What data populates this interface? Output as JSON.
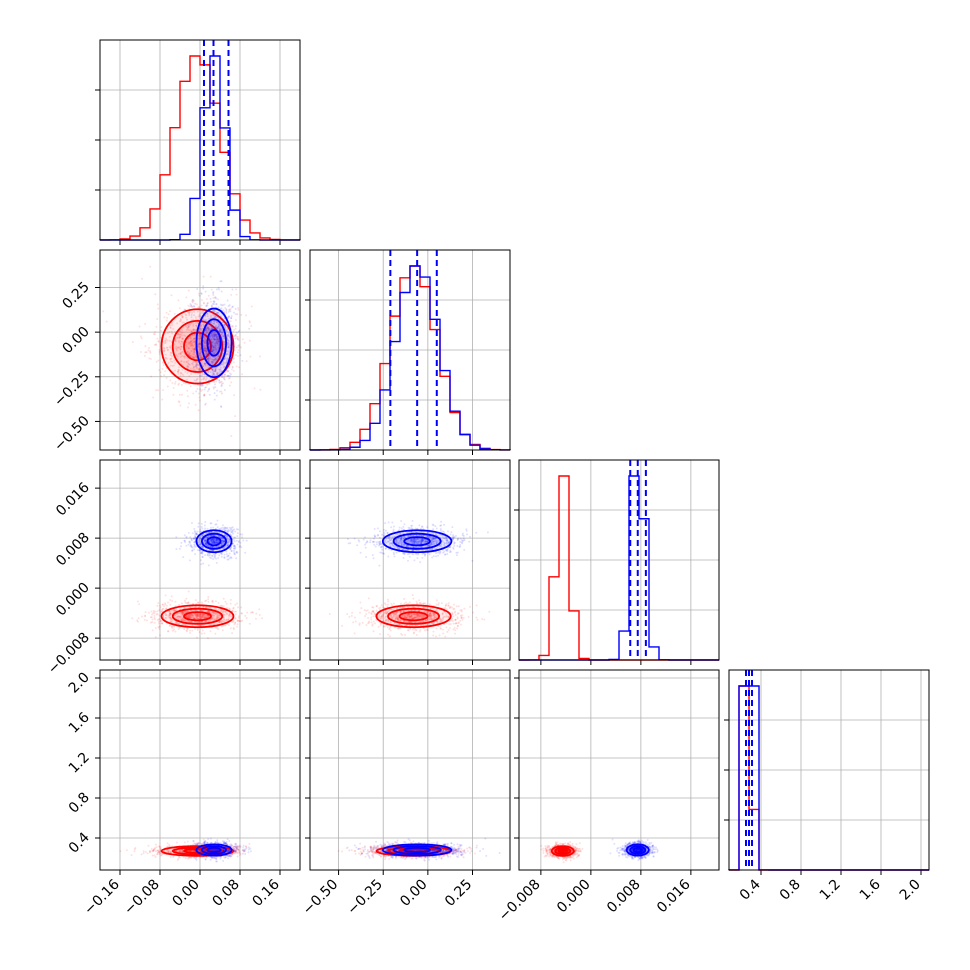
{
  "chart_data": {
    "type": "corner",
    "grid": true,
    "series": [
      {
        "name": "",
        "color": "#ff0000"
      },
      {
        "name": "",
        "color": "#0000ff"
      }
    ],
    "params": [
      {
        "xlim": [
          -0.2,
          0.2
        ],
        "ticks": [
          -0.16,
          -0.08,
          0.0,
          0.08,
          0.16
        ],
        "tick_labels": [
          "−0.16",
          "−0.08",
          "0.00",
          "0.08",
          "0.16"
        ]
      },
      {
        "xlim": [
          -0.66,
          0.46
        ],
        "ticks": [
          -0.5,
          -0.25,
          0.0,
          0.25
        ],
        "tick_labels": [
          "−0.50",
          "−0.25",
          "0.00",
          "0.25"
        ],
        "yticks": [
          -0.5,
          -0.25,
          0.0,
          0.25
        ],
        "ytick_labels": [
          "−0.50",
          "−0.25",
          "0.00",
          "0.25"
        ]
      },
      {
        "xlim": [
          -0.0115,
          0.0205
        ],
        "ticks": [
          -0.008,
          0.0,
          0.008,
          0.016
        ],
        "tick_labels": [
          "−0.008",
          "0.000",
          "0.008",
          "0.016"
        ],
        "yticks": [
          -0.008,
          0.0,
          0.008,
          0.016
        ],
        "ytick_labels": [
          "−0.008",
          "0.000",
          "0.008",
          "0.016"
        ]
      },
      {
        "xlim": [
          0.08,
          2.08
        ],
        "ticks": [
          0.4,
          0.8,
          1.2,
          1.6,
          2.0
        ],
        "tick_labels": [
          "0.4",
          "0.8",
          "1.2",
          "1.6",
          "2.0"
        ],
        "yticks": [
          0.4,
          0.8,
          1.2,
          1.6,
          2.0
        ],
        "ytick_labels": [
          "0.4",
          "0.8",
          "1.2",
          "1.6",
          "2.0"
        ]
      }
    ],
    "distributions": {
      "red": [
        {
          "mean": -0.005,
          "sd": 0.045
        },
        {
          "mean": -0.08,
          "sd": 0.13
        },
        {
          "mean": -0.0045,
          "sd": 0.0011
        },
        {
          "mean": 0.27,
          "sd": 0.03
        }
      ],
      "blue": [
        {
          "mean": 0.028,
          "sd": 0.022
        },
        {
          "mean": -0.06,
          "sd": 0.12
        },
        {
          "mean": 0.0075,
          "sd": 0.0011
        },
        {
          "mean": 0.28,
          "sd": 0.035
        }
      ]
    },
    "quantile_lines_blue": [
      [
        0.008,
        0.027,
        0.057
      ],
      [
        -0.21,
        -0.06,
        0.05
      ],
      [
        0.0063,
        0.0075,
        0.0088
      ],
      [
        0.25,
        0.28,
        0.31
      ]
    ]
  }
}
